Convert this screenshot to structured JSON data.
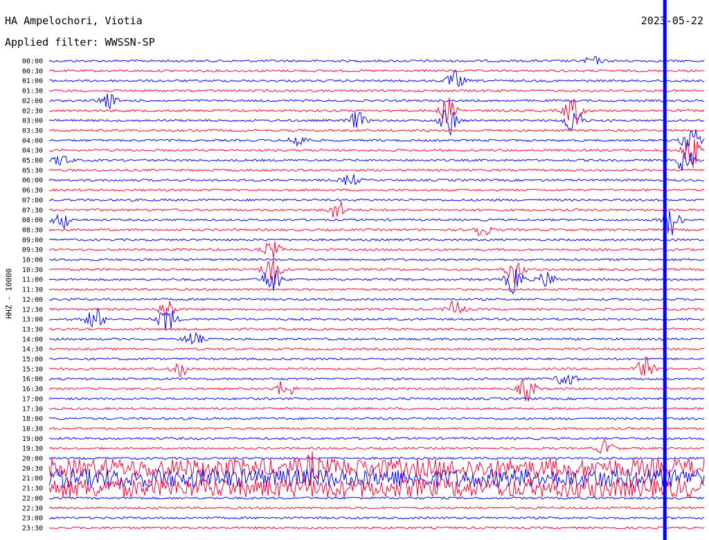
{
  "header": {
    "station": "HA Ampelochori, Viotia",
    "filter": "Applied filter: WWSSN-SP",
    "date": "2023-05-22"
  },
  "colors": {
    "blue": "#0000ff",
    "red": "#ff0033",
    "marker": "#0000ff"
  },
  "chart_data": {
    "type": "helicorder",
    "ylabel": "HHZ - 10000",
    "tick_labels": [
      "00:00",
      "00:30",
      "01:00",
      "01:30",
      "02:00",
      "02:30",
      "03:00",
      "03:30",
      "04:00",
      "04:30",
      "05:00",
      "05:30",
      "06:00",
      "06:30",
      "07:00",
      "07:30",
      "08:00",
      "08:30",
      "09:00",
      "09:30",
      "10:00",
      "10:30",
      "11:00",
      "11:30",
      "12:00",
      "12:30",
      "13:00",
      "13:30",
      "14:00",
      "14:30",
      "15:00",
      "15:30",
      "16:00",
      "16:30",
      "17:00",
      "17:30",
      "18:00",
      "18:30",
      "19:00",
      "19:30",
      "20:00",
      "20:30",
      "21:00",
      "21:30",
      "22:00",
      "22:30",
      "23:00",
      "23:30"
    ],
    "trace_colors": [
      "blue",
      "red"
    ],
    "current_time_marker_fraction": 0.94,
    "events": [
      {
        "trace": 0,
        "x": 0.83,
        "amp": 0.35
      },
      {
        "trace": 2,
        "x": 0.62,
        "amp": 0.75
      },
      {
        "trace": 4,
        "x": 0.09,
        "amp": 0.6
      },
      {
        "trace": 5,
        "x": 0.61,
        "amp": 1.1
      },
      {
        "trace": 6,
        "x": 0.61,
        "amp": 1.2
      },
      {
        "trace": 5,
        "x": 0.8,
        "amp": 1.3
      },
      {
        "trace": 6,
        "x": 0.8,
        "amp": 1.2
      },
      {
        "trace": 6,
        "x": 0.47,
        "amp": 0.7
      },
      {
        "trace": 8,
        "x": 0.38,
        "amp": 0.6
      },
      {
        "trace": 8,
        "x": 0.98,
        "amp": 1.2
      },
      {
        "trace": 9,
        "x": 0.98,
        "amp": 1.4
      },
      {
        "trace": 10,
        "x": 0.97,
        "amp": 1.1
      },
      {
        "trace": 10,
        "x": 0.02,
        "amp": 0.5
      },
      {
        "trace": 12,
        "x": 0.46,
        "amp": 0.5
      },
      {
        "trace": 15,
        "x": 0.44,
        "amp": 0.8
      },
      {
        "trace": 16,
        "x": 0.02,
        "amp": 0.7
      },
      {
        "trace": 16,
        "x": 0.95,
        "amp": 1.2
      },
      {
        "trace": 17,
        "x": 0.66,
        "amp": 0.6
      },
      {
        "trace": 19,
        "x": 0.34,
        "amp": 0.7
      },
      {
        "trace": 21,
        "x": 0.34,
        "amp": 1.4
      },
      {
        "trace": 22,
        "x": 0.34,
        "amp": 1.2
      },
      {
        "trace": 22,
        "x": 0.71,
        "amp": 1.2
      },
      {
        "trace": 21,
        "x": 0.71,
        "amp": 1.1
      },
      {
        "trace": 22,
        "x": 0.76,
        "amp": 0.7
      },
      {
        "trace": 26,
        "x": 0.07,
        "amp": 1.0
      },
      {
        "trace": 26,
        "x": 0.18,
        "amp": 1.1
      },
      {
        "trace": 25,
        "x": 0.18,
        "amp": 0.8
      },
      {
        "trace": 25,
        "x": 0.62,
        "amp": 0.7
      },
      {
        "trace": 28,
        "x": 0.22,
        "amp": 0.6
      },
      {
        "trace": 31,
        "x": 0.2,
        "amp": 0.6
      },
      {
        "trace": 31,
        "x": 0.91,
        "amp": 0.9
      },
      {
        "trace": 32,
        "x": 0.79,
        "amp": 0.8
      },
      {
        "trace": 33,
        "x": 0.36,
        "amp": 0.8
      },
      {
        "trace": 33,
        "x": 0.73,
        "amp": 1.0
      },
      {
        "trace": 39,
        "x": 0.85,
        "amp": 0.6
      },
      {
        "trace": 41,
        "x": 0.4,
        "amp": 0.7
      }
    ],
    "noisy_band": {
      "from_trace": 41,
      "to_trace": 43,
      "amp": 1.0
    }
  }
}
